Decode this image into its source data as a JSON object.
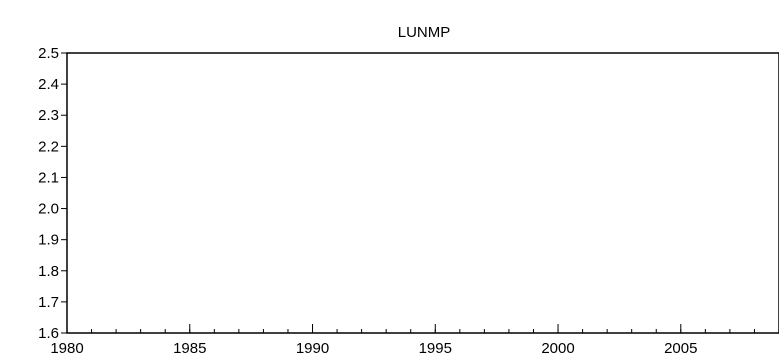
{
  "chart_data": {
    "type": "line",
    "title": "LUNMP",
    "xlabel": "",
    "ylabel": "",
    "xlim": [
      1980,
      2009
    ],
    "ylim": [
      1.6,
      2.5
    ],
    "x_ticks": [
      "1980",
      "1985",
      "1990",
      "1995",
      "2000",
      "2005"
    ],
    "y_ticks": [
      "1.6",
      "1.7",
      "1.8",
      "1.9",
      "2.0",
      "2.1",
      "2.2",
      "2.3",
      "2.4",
      "2.5"
    ],
    "series": [
      {
        "x": [],
        "values": []
      }
    ],
    "grid": false,
    "legend": "none",
    "colors": {
      "axis": "#000000",
      "line": "#0000ff"
    }
  }
}
